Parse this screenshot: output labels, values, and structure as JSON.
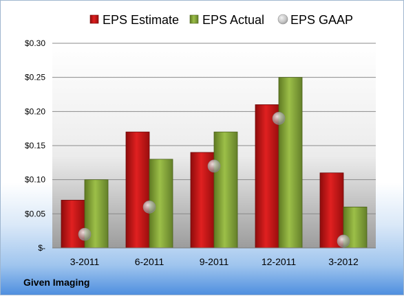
{
  "company": "Given Imaging",
  "chart_data": {
    "type": "bar",
    "categories": [
      "3-2011",
      "6-2011",
      "9-2011",
      "12-2011",
      "3-2012"
    ],
    "series": [
      {
        "name": "EPS Estimate",
        "kind": "bar",
        "color": "#cc1111",
        "values": [
          0.07,
          0.17,
          0.14,
          0.21,
          0.11
        ]
      },
      {
        "name": "EPS Actual",
        "kind": "bar",
        "color": "#86a63a",
        "values": [
          0.1,
          0.13,
          0.17,
          0.25,
          0.06
        ]
      },
      {
        "name": "EPS GAAP",
        "kind": "marker",
        "color": "#b0b0b0",
        "values": [
          0.02,
          0.06,
          0.12,
          0.19,
          0.01
        ]
      }
    ],
    "yticks": [
      "$-",
      "$0.05",
      "$0.10",
      "$0.15",
      "$0.20",
      "$0.25",
      "$0.30"
    ],
    "ylim": [
      0,
      0.3
    ],
    "grid": true,
    "legend": "top"
  }
}
